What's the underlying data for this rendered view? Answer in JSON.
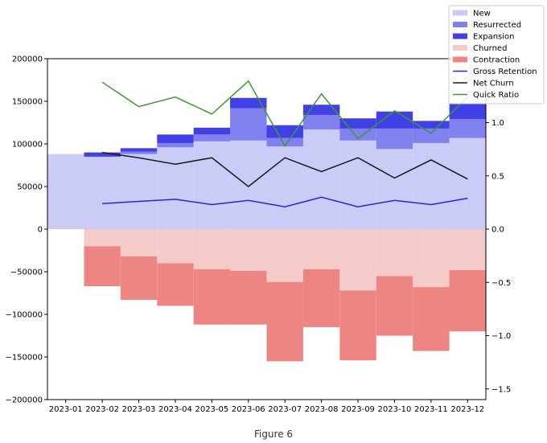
{
  "figure": {
    "caption": "Figure 6"
  },
  "colors": {
    "new": "#cbcbf8",
    "resurrected": "#8080ef",
    "expansion": "#4040e6",
    "churned": "#f5cbc9",
    "contraction": "#ed8682",
    "gross_retention": "#2626d9",
    "net_churn": "#1a1a1a",
    "quick_ratio": "#3a9a30"
  },
  "chart_data": {
    "type": "bar",
    "categories": [
      "2023-01",
      "2023-02",
      "2023-03",
      "2023-04",
      "2023-05",
      "2023-06",
      "2023-07",
      "2023-08",
      "2023-09",
      "2023-10",
      "2023-11",
      "2023-12"
    ],
    "ylim": [
      -200000,
      200000
    ],
    "y_ticks": [
      200000,
      150000,
      100000,
      50000,
      0,
      -50000,
      -100000,
      -150000,
      -200000
    ],
    "y_tick_labels": [
      "200000",
      "150000",
      "100000",
      "50000",
      "0",
      "−50000",
      "−100000",
      "−150000",
      "−200000"
    ],
    "y2lim": [
      -1.6,
      1.6
    ],
    "y2_ticks": [
      1.0,
      0.5,
      0.0,
      -0.5,
      -1.0,
      -1.5
    ],
    "y2_tick_labels": [
      "1.0",
      "0.5",
      "0.0",
      "−0.5",
      "−1.0",
      "−1.5"
    ],
    "legend_position": "top-right",
    "grid": false,
    "stacked_bars": [
      {
        "name": "New",
        "values": [
          88000,
          85000,
          88000,
          96000,
          103000,
          104000,
          97000,
          117000,
          104000,
          94000,
          101000,
          107000
        ]
      },
      {
        "name": "Resurrected",
        "values": [
          0,
          0,
          3000,
          5000,
          8000,
          38000,
          10000,
          17000,
          14000,
          24000,
          17000,
          22000
        ]
      },
      {
        "name": "Expansion",
        "values": [
          0,
          5000,
          4000,
          10000,
          8000,
          12000,
          15000,
          12000,
          12000,
          20000,
          9000,
          18000
        ]
      },
      {
        "name": "Churned",
        "values": [
          0,
          -20000,
          -32000,
          -40000,
          -47000,
          -49000,
          -62000,
          -47000,
          -72000,
          -55000,
          -68000,
          -48000
        ]
      },
      {
        "name": "Contraction",
        "values": [
          0,
          -47000,
          -51000,
          -50000,
          -65000,
          -63000,
          -93000,
          -68000,
          -82000,
          -70000,
          -75000,
          -72000
        ]
      }
    ],
    "lines": [
      {
        "name": "Gross Retention",
        "axis": "right",
        "x": [
          "2023-02",
          "2023-03",
          "2023-04",
          "2023-05",
          "2023-06",
          "2023-07",
          "2023-08",
          "2023-09",
          "2023-10",
          "2023-11",
          "2023-12"
        ],
        "values": [
          0.24,
          0.26,
          0.28,
          0.23,
          0.27,
          0.21,
          0.3,
          0.21,
          0.27,
          0.23,
          0.29
        ]
      },
      {
        "name": "Net Churn",
        "axis": "right",
        "x": [
          "2023-02",
          "2023-03",
          "2023-04",
          "2023-05",
          "2023-06",
          "2023-07",
          "2023-08",
          "2023-09",
          "2023-10",
          "2023-11",
          "2023-12"
        ],
        "values": [
          0.72,
          0.67,
          0.61,
          0.67,
          0.4,
          0.67,
          0.54,
          0.67,
          0.48,
          0.65,
          0.47
        ]
      },
      {
        "name": "Quick Ratio",
        "axis": "right",
        "x": [
          "2023-02",
          "2023-03",
          "2023-04",
          "2023-05",
          "2023-06",
          "2023-07",
          "2023-08",
          "2023-09",
          "2023-10",
          "2023-11",
          "2023-12"
        ],
        "values": [
          1.38,
          1.15,
          1.24,
          1.08,
          1.39,
          0.78,
          1.27,
          0.85,
          1.11,
          0.9,
          1.24
        ]
      }
    ],
    "legend": [
      "New",
      "Resurrected",
      "Expansion",
      "Churned",
      "Contraction",
      "Gross Retention",
      "Net Churn",
      "Quick Ratio"
    ]
  }
}
